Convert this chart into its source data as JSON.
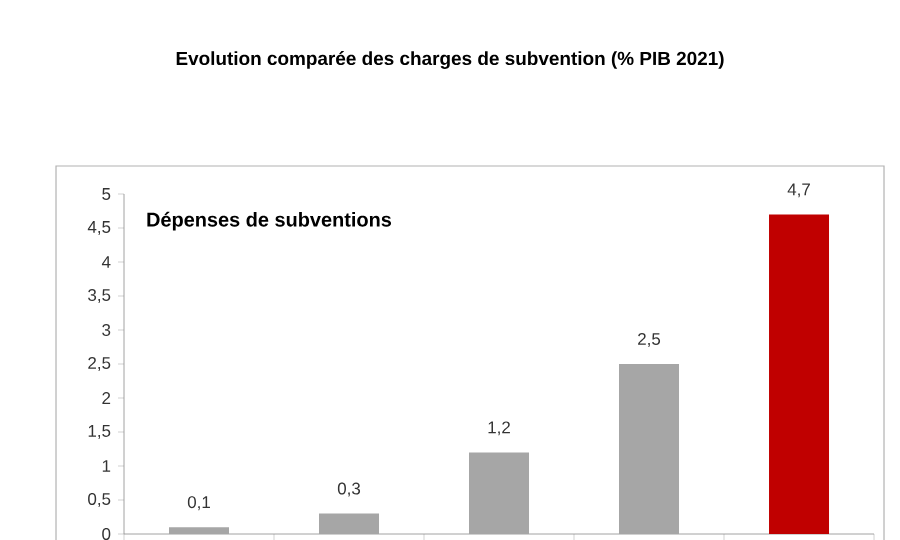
{
  "chart_data": {
    "type": "bar",
    "title": "Evolution comparée des charges de subvention (% PIB 2021)",
    "annotations": [
      "Dépenses de subventions"
    ],
    "categories": [
      null,
      null,
      null,
      null,
      null
    ],
    "values": [
      0.1,
      0.3,
      1.2,
      2.5,
      4.7
    ],
    "value_labels": [
      "0,1",
      "0,3",
      "1,2",
      "2,5",
      "4,7"
    ],
    "colors": [
      "#a6a6a6",
      "#a6a6a6",
      "#a6a6a6",
      "#a6a6a6",
      "#c00000"
    ],
    "ylim": [
      0,
      5
    ],
    "yticks": [
      0,
      {
        "value": 0.5,
        "label": "0,5"
      },
      1,
      {
        "value": 1.5,
        "label": "1,5"
      },
      2,
      {
        "value": 2.5,
        "label": "2,5"
      },
      3,
      {
        "value": 3.5,
        "label": "3,5"
      },
      4,
      {
        "value": 4.5,
        "label": "4,5"
      },
      5
    ],
    "grid": false
  }
}
